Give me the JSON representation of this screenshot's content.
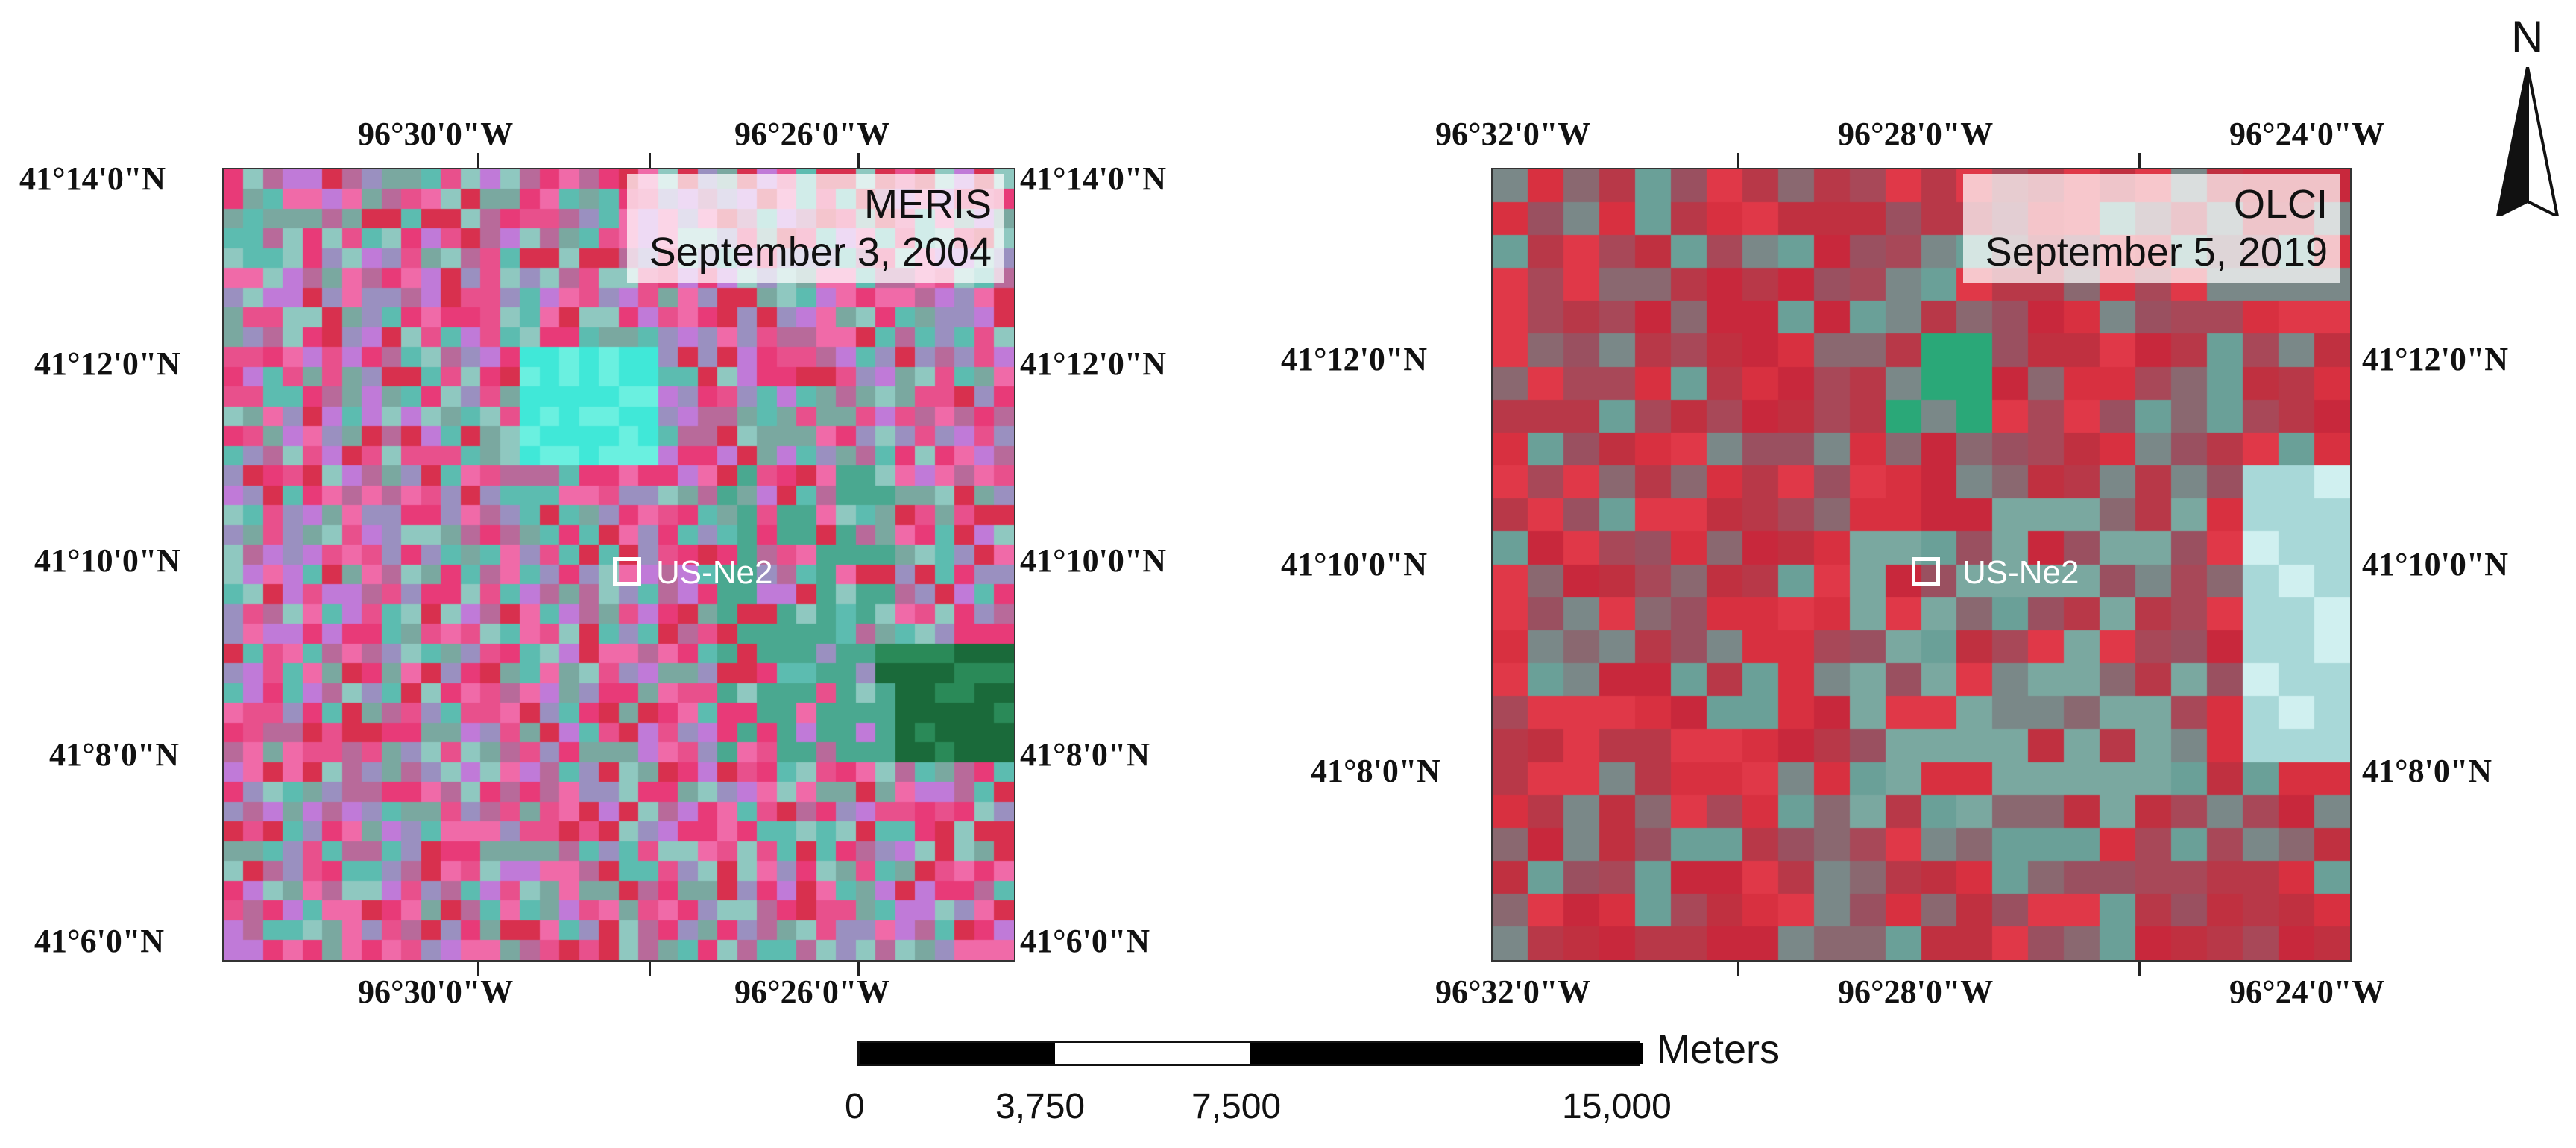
{
  "north_arrow": {
    "label": "N"
  },
  "scale_bar": {
    "unit": "Meters",
    "ticks": [
      "0",
      "3,750",
      "7,500",
      "15,000"
    ],
    "tick_values": [
      0,
      3750,
      7500,
      15000
    ]
  },
  "panels": [
    {
      "id": "meris",
      "sensor": "MERIS",
      "date": "September 3, 2004",
      "site_label": "US-Ne2",
      "top_lon_labels": [
        "96°30'0\"W",
        "96°26'0\"W"
      ],
      "bottom_lon_labels": [
        "96°30'0\"W",
        "96°26'0\"W"
      ],
      "left_lat_labels": [
        "41°14'0\"N",
        "41°12'0\"N",
        "41°10'0\"N",
        "41°8'0\"N",
        "41°6'0\"N"
      ],
      "right_lat_labels": [
        "41°14'0\"N",
        "41°12'0\"N",
        "41°10'0\"N",
        "41°8'0\"N",
        "41°6'0\"N"
      ],
      "grid_cells": 40,
      "palette": [
        "#e83a78",
        "#f06aa8",
        "#d8304e",
        "#c07ad8",
        "#9a90c0",
        "#7aa8a0",
        "#5cbcb0",
        "#e8508c",
        "#b86a9a",
        "#8fc8c0"
      ]
    },
    {
      "id": "olci",
      "sensor": "OLCI",
      "date": "September 5, 2019",
      "site_label": "US-Ne2",
      "top_lon_labels": [
        "96°32'0\"W",
        "96°28'0\"W",
        "96°24'0\"W"
      ],
      "bottom_lon_labels": [
        "96°32'0\"W",
        "96°28'0\"W",
        "96°24'0\"W"
      ],
      "left_lat_labels": [
        "41°12'0\"N",
        "41°10'0\"N",
        "41°8'0\"N"
      ],
      "right_lat_labels": [
        "41°12'0\"N",
        "41°10'0\"N",
        "41°8'0\"N"
      ],
      "grid_cells": 24,
      "palette": [
        "#c8283c",
        "#d83040",
        "#b83848",
        "#a84858",
        "#8a6870",
        "#7a8888",
        "#6aa098",
        "#e03848",
        "#9a5060",
        "#c03040"
      ]
    }
  ]
}
